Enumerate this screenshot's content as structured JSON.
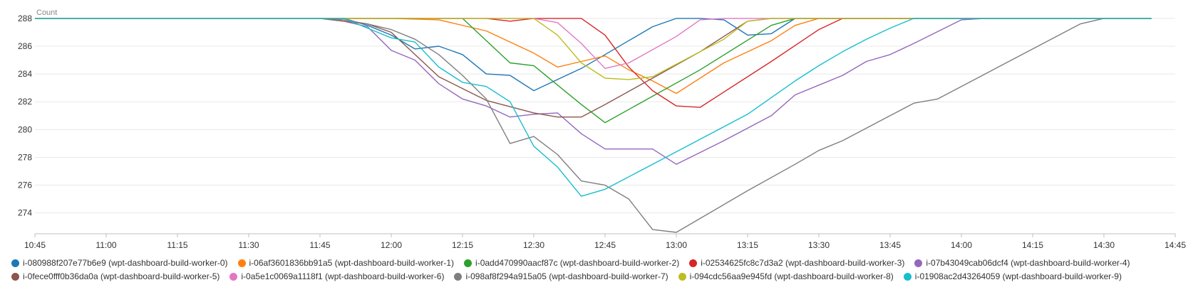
{
  "chart_data": {
    "type": "line",
    "ylabel": "Count",
    "ylim": [
      272.5,
      288.2
    ],
    "yticks": [
      274,
      276,
      278,
      280,
      282,
      284,
      286,
      288
    ],
    "xlim": [
      "10:45",
      "14:45"
    ],
    "xticks": [
      "10:45",
      "11:00",
      "11:15",
      "11:30",
      "11:45",
      "12:00",
      "12:15",
      "12:30",
      "12:45",
      "13:00",
      "13:15",
      "13:30",
      "13:45",
      "14:00",
      "14:15",
      "14:30",
      "14:45"
    ],
    "grid": true,
    "legend_position": "bottom",
    "series": [
      {
        "name": "i-080988f207e77b6e9 (wpt-dashboard-build-worker-0)",
        "color": "#1f77b4",
        "points": [
          [
            "10:45",
            288
          ],
          [
            "11:45",
            288
          ],
          [
            "11:50",
            288
          ],
          [
            "11:55",
            287.5
          ],
          [
            "12:00",
            286.8
          ],
          [
            "12:05",
            285.8
          ],
          [
            "12:10",
            286
          ],
          [
            "12:15",
            285.4
          ],
          [
            "12:20",
            284
          ],
          [
            "12:25",
            283.9
          ],
          [
            "12:30",
            282.8
          ],
          [
            "12:35",
            283.6
          ],
          [
            "12:40",
            284.4
          ],
          [
            "12:45",
            285.4
          ],
          [
            "12:50",
            286.4
          ],
          [
            "12:55",
            287.4
          ],
          [
            "13:00",
            288
          ],
          [
            "13:05",
            288
          ],
          [
            "13:10",
            287.9
          ],
          [
            "13:15",
            286.8
          ],
          [
            "13:20",
            286.9
          ],
          [
            "13:25",
            288
          ],
          [
            "14:40",
            288
          ]
        ]
      },
      {
        "name": "i-06af3601836bb91a5 (wpt-dashboard-build-worker-1)",
        "color": "#ff7f0e",
        "points": [
          [
            "10:45",
            288
          ],
          [
            "12:00",
            288
          ],
          [
            "12:10",
            287.9
          ],
          [
            "12:20",
            287.1
          ],
          [
            "12:30",
            285.5
          ],
          [
            "12:35",
            284.5
          ],
          [
            "12:40",
            284.9
          ],
          [
            "12:45",
            285.3
          ],
          [
            "12:50",
            284.3
          ],
          [
            "12:55",
            283.5
          ],
          [
            "13:00",
            282.6
          ],
          [
            "13:10",
            284.8
          ],
          [
            "13:20",
            286.4
          ],
          [
            "13:25",
            287.5
          ],
          [
            "13:30",
            288
          ],
          [
            "14:40",
            288
          ]
        ]
      },
      {
        "name": "i-0add470990aacf87c (wpt-dashboard-build-worker-2)",
        "color": "#2ca02c",
        "points": [
          [
            "10:45",
            288
          ],
          [
            "12:00",
            288
          ],
          [
            "12:15",
            288
          ],
          [
            "12:25",
            284.8
          ],
          [
            "12:30",
            284.6
          ],
          [
            "12:40",
            281.8
          ],
          [
            "12:45",
            280.5
          ],
          [
            "13:05",
            284.3
          ],
          [
            "13:20",
            287.5
          ],
          [
            "13:25",
            288
          ],
          [
            "14:40",
            288
          ]
        ]
      },
      {
        "name": "i-02534625fc8c7d3a2 (wpt-dashboard-build-worker-3)",
        "color": "#d62728",
        "points": [
          [
            "10:45",
            288
          ],
          [
            "12:00",
            288
          ],
          [
            "12:20",
            288
          ],
          [
            "12:25",
            287.8
          ],
          [
            "12:30",
            288
          ],
          [
            "12:40",
            288
          ],
          [
            "12:45",
            286.8
          ],
          [
            "12:50",
            284.5
          ],
          [
            "12:55",
            282.8
          ],
          [
            "13:00",
            281.7
          ],
          [
            "13:05",
            281.6
          ],
          [
            "13:20",
            284.9
          ],
          [
            "13:30",
            287.2
          ],
          [
            "13:35",
            288
          ],
          [
            "14:40",
            288
          ]
        ]
      },
      {
        "name": "i-07b43049cab06dcf4 (wpt-dashboard-build-worker-4)",
        "color": "#9467bd",
        "points": [
          [
            "10:45",
            288
          ],
          [
            "11:45",
            288
          ],
          [
            "11:50",
            287.8
          ],
          [
            "11:55",
            287.4
          ],
          [
            "12:00",
            285.7
          ],
          [
            "12:05",
            285
          ],
          [
            "12:10",
            283.3
          ],
          [
            "12:15",
            282.2
          ],
          [
            "12:20",
            281.7
          ],
          [
            "12:25",
            280.9
          ],
          [
            "12:30",
            281.1
          ],
          [
            "12:35",
            281.2
          ],
          [
            "12:40",
            279.7
          ],
          [
            "12:45",
            278.6
          ],
          [
            "12:50",
            278.6
          ],
          [
            "12:55",
            278.6
          ],
          [
            "13:00",
            277.5
          ],
          [
            "13:10",
            279.2
          ],
          [
            "13:20",
            281
          ],
          [
            "13:25",
            282.5
          ],
          [
            "13:30",
            283.2
          ],
          [
            "13:35",
            283.9
          ],
          [
            "13:40",
            284.9
          ],
          [
            "13:45",
            285.4
          ],
          [
            "13:50",
            286.2
          ],
          [
            "14:00",
            287.9
          ],
          [
            "14:05",
            288
          ],
          [
            "14:40",
            288
          ]
        ]
      },
      {
        "name": "i-0fece0fff0b36da0a (wpt-dashboard-build-worker-5)",
        "color": "#8c564b",
        "points": [
          [
            "10:45",
            288
          ],
          [
            "11:45",
            288
          ],
          [
            "11:55",
            287.6
          ],
          [
            "12:00",
            287
          ],
          [
            "12:10",
            283.8
          ],
          [
            "12:20",
            282.1
          ],
          [
            "12:30",
            281.2
          ],
          [
            "12:35",
            280.9
          ],
          [
            "12:40",
            280.9
          ],
          [
            "12:45",
            281.8
          ],
          [
            "12:55",
            283.7
          ],
          [
            "13:05",
            285.6
          ],
          [
            "13:15",
            287.8
          ],
          [
            "13:20",
            288
          ],
          [
            "14:40",
            288
          ]
        ]
      },
      {
        "name": "i-0a5e1c0069a1118f1 (wpt-dashboard-build-worker-6)",
        "color": "#e377c2",
        "points": [
          [
            "10:45",
            288
          ],
          [
            "12:00",
            288
          ],
          [
            "12:20",
            288
          ],
          [
            "12:30",
            288
          ],
          [
            "12:35",
            287.7
          ],
          [
            "12:40",
            286.2
          ],
          [
            "12:45",
            284.4
          ],
          [
            "12:50",
            284.8
          ],
          [
            "13:00",
            286.7
          ],
          [
            "13:05",
            287.9
          ],
          [
            "13:10",
            288
          ],
          [
            "14:40",
            288
          ]
        ]
      },
      {
        "name": "i-098af8f294a915a05 (wpt-dashboard-build-worker-7)",
        "color": "#7f7f7f",
        "points": [
          [
            "10:45",
            288
          ],
          [
            "11:45",
            288
          ],
          [
            "11:50",
            287.9
          ],
          [
            "11:55",
            287.6
          ],
          [
            "12:00",
            287.2
          ],
          [
            "12:05",
            286.5
          ],
          [
            "12:10",
            285.4
          ],
          [
            "12:15",
            283.9
          ],
          [
            "12:20",
            282.2
          ],
          [
            "12:25",
            279
          ],
          [
            "12:30",
            279.5
          ],
          [
            "12:35",
            278.2
          ],
          [
            "12:40",
            276.3
          ],
          [
            "12:45",
            276
          ],
          [
            "12:50",
            275
          ],
          [
            "12:55",
            272.8
          ],
          [
            "13:00",
            272.6
          ],
          [
            "13:05",
            273.6
          ],
          [
            "13:15",
            275.6
          ],
          [
            "13:25",
            277.5
          ],
          [
            "13:30",
            278.5
          ],
          [
            "13:35",
            279.2
          ],
          [
            "13:45",
            281
          ],
          [
            "13:50",
            281.9
          ],
          [
            "13:55",
            282.2
          ],
          [
            "14:05",
            284
          ],
          [
            "14:15",
            285.8
          ],
          [
            "14:25",
            287.6
          ],
          [
            "14:30",
            288
          ],
          [
            "14:40",
            288
          ]
        ]
      },
      {
        "name": "i-094cdc56aa9e945fd (wpt-dashboard-build-worker-8)",
        "color": "#bcbd22",
        "points": [
          [
            "10:45",
            288
          ],
          [
            "12:00",
            288
          ],
          [
            "12:30",
            288
          ],
          [
            "12:35",
            286.8
          ],
          [
            "12:40",
            284.8
          ],
          [
            "12:45",
            283.7
          ],
          [
            "12:50",
            283.6
          ],
          [
            "12:55",
            283.8
          ],
          [
            "13:00",
            284.7
          ],
          [
            "13:05",
            285.6
          ],
          [
            "13:10",
            286.5
          ],
          [
            "13:15",
            287.8
          ],
          [
            "13:20",
            288
          ],
          [
            "14:40",
            288
          ]
        ]
      },
      {
        "name": "i-01908ac2d43264059 (wpt-dashboard-build-worker-9)",
        "color": "#17becf",
        "points": [
          [
            "10:45",
            288
          ],
          [
            "11:50",
            288
          ],
          [
            "11:55",
            287.3
          ],
          [
            "12:00",
            286.6
          ],
          [
            "12:05",
            286.3
          ],
          [
            "12:10",
            284.5
          ],
          [
            "12:15",
            283.4
          ],
          [
            "12:20",
            283.1
          ],
          [
            "12:25",
            282
          ],
          [
            "12:30",
            278.8
          ],
          [
            "12:35",
            277.3
          ],
          [
            "12:40",
            275.2
          ],
          [
            "12:45",
            275.7
          ],
          [
            "12:55",
            277.5
          ],
          [
            "13:05",
            279.3
          ],
          [
            "13:15",
            281.1
          ],
          [
            "13:25",
            283.5
          ],
          [
            "13:30",
            284.6
          ],
          [
            "13:35",
            285.6
          ],
          [
            "13:40",
            286.5
          ],
          [
            "13:45",
            287.3
          ],
          [
            "13:50",
            288
          ],
          [
            "14:40",
            288
          ]
        ]
      }
    ]
  }
}
